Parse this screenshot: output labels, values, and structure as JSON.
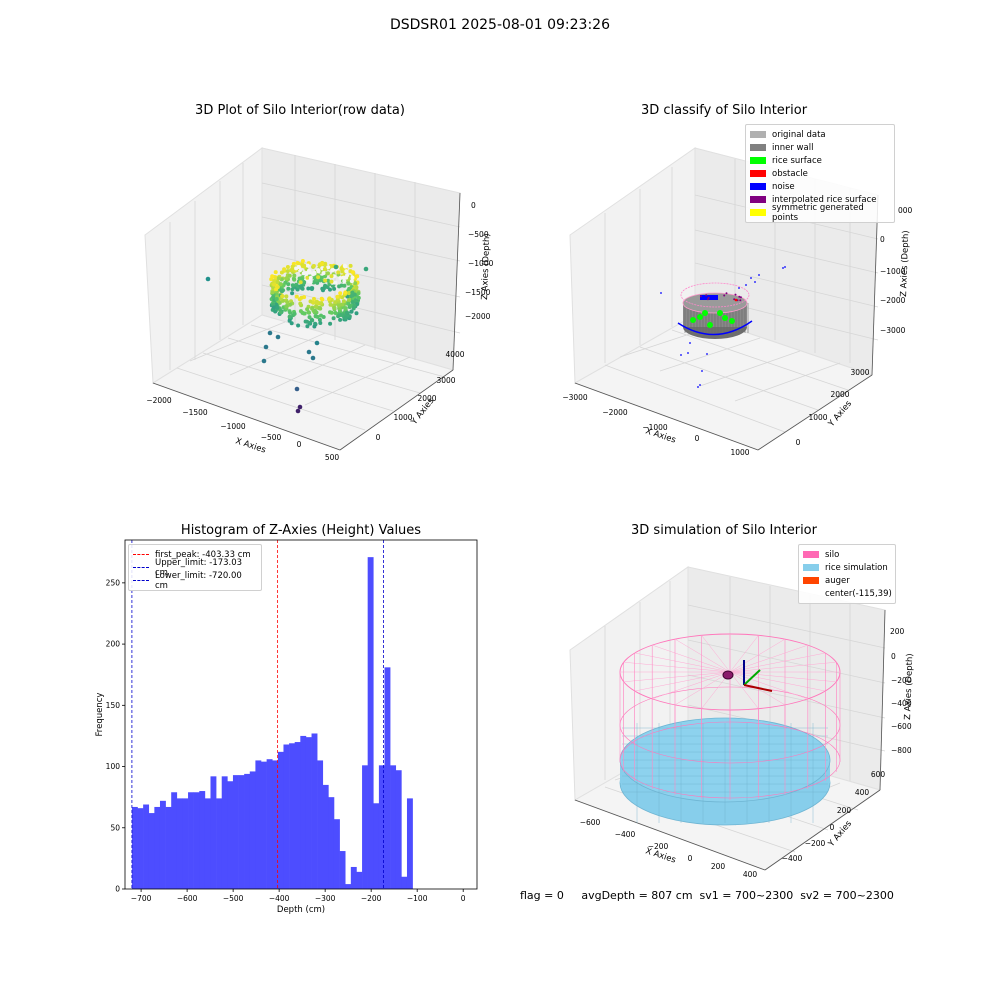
{
  "suptitle": "DSDSR01 2025-08-01 09:23:26",
  "footer": "flag = 0     avgDepth = 807 cm  sv1 = 700~2300  sv2 = 700~2300",
  "colors": {
    "hist_bar": "#4d4dff",
    "first_peak_line": "#ff0000",
    "limit_line": "#0000cc",
    "silo_wire": "#ff77bb",
    "rice_sim": "#87ceeb"
  },
  "chart_data": [
    {
      "id": "raw",
      "type": "scatter3d",
      "title": "3D Plot of Silo Interior(row data)",
      "xlabel": "X Axies",
      "ylabel": "Y Axies",
      "zlabel": "Z Axies (Depth)",
      "xticks": [
        "−2000",
        "−1500",
        "−1000",
        "−500",
        "0",
        "500"
      ],
      "yticks": [
        "0",
        "1000",
        "2000",
        "3000",
        "4000"
      ],
      "zticks": [
        "0",
        "−500",
        "−1000",
        "−1500",
        "−2000"
      ],
      "colormap": "viridis"
    },
    {
      "id": "classify",
      "type": "scatter3d",
      "title": "3D classify of Silo Interior",
      "xlabel": "X Axies",
      "ylabel": "Y Axies",
      "zlabel": "Z Axies (Depth)",
      "xticks": [
        "−3000",
        "−2000",
        "−1000",
        "0",
        "1000"
      ],
      "yticks": [
        "0",
        "1000",
        "2000",
        "3000"
      ],
      "zticks": [
        "0",
        "−1000",
        "−2000",
        "−3000"
      ],
      "legend": [
        {
          "label": "original data",
          "color": "#b0b0b0"
        },
        {
          "label": "inner wall",
          "color": "#808080"
        },
        {
          "label": "rice surface",
          "color": "#00ff00"
        },
        {
          "label": "obstacle",
          "color": "#ff0000"
        },
        {
          "label": "noise",
          "color": "#0000ff"
        },
        {
          "label": "interpolated rice surface",
          "color": "#800080"
        },
        {
          "label": "symmetric generated points",
          "color": "#ffff00"
        }
      ]
    },
    {
      "id": "hist",
      "type": "bar",
      "title": "Histogram of Z-Axies (Height) Values",
      "xlabel": "Depth (cm)",
      "ylabel": "Frequency",
      "xlim": [
        -735,
        30
      ],
      "ylim": [
        0,
        285
      ],
      "xticks": [
        -700,
        -600,
        -500,
        -400,
        -300,
        -200,
        -100,
        0
      ],
      "yticks": [
        0,
        50,
        100,
        150,
        200,
        250
      ],
      "bin_start": -720,
      "bin_width": 12.2,
      "values": [
        67,
        66,
        69,
        62,
        67,
        72,
        67,
        79,
        74,
        74,
        79,
        79,
        80,
        74,
        92,
        74,
        92,
        88,
        93,
        93,
        94,
        96,
        105,
        104,
        106,
        105,
        112,
        118,
        119,
        120,
        125,
        124,
        127,
        105,
        85,
        75,
        57,
        31,
        4,
        18,
        14,
        101,
        271,
        70,
        101,
        181,
        101,
        97,
        10,
        74
      ],
      "vlines": [
        {
          "label": "first_peak: -403.33 cm",
          "x": -403.33,
          "color": "#ff0000"
        },
        {
          "label": "Upper_limit: -173.03 cm",
          "x": -173.03,
          "color": "#0000cc"
        },
        {
          "label": "Lower_limit: -720.00 cm",
          "x": -720.0,
          "color": "#0000cc"
        }
      ]
    },
    {
      "id": "sim",
      "type": "surface3d",
      "title": "3D simulation of Silo Interior",
      "xlabel": "X Axies",
      "ylabel": "Y Axies",
      "zlabel": "Z Axies (Depth)",
      "xticks": [
        "−600",
        "−400",
        "−200",
        "0",
        "200",
        "400"
      ],
      "yticks": [
        "−400",
        "−200",
        "0",
        "200",
        "400",
        "600"
      ],
      "zticks": [
        "200",
        "0",
        "−200",
        "−400",
        "−600",
        "−800"
      ],
      "legend": [
        {
          "label": "silo",
          "color": "#ff69b4"
        },
        {
          "label": "rice simulation",
          "color": "#87ceeb"
        },
        {
          "label": "auger",
          "color": "#ff4500"
        },
        {
          "label": "center(-115,39)",
          "color": ""
        }
      ]
    }
  ]
}
